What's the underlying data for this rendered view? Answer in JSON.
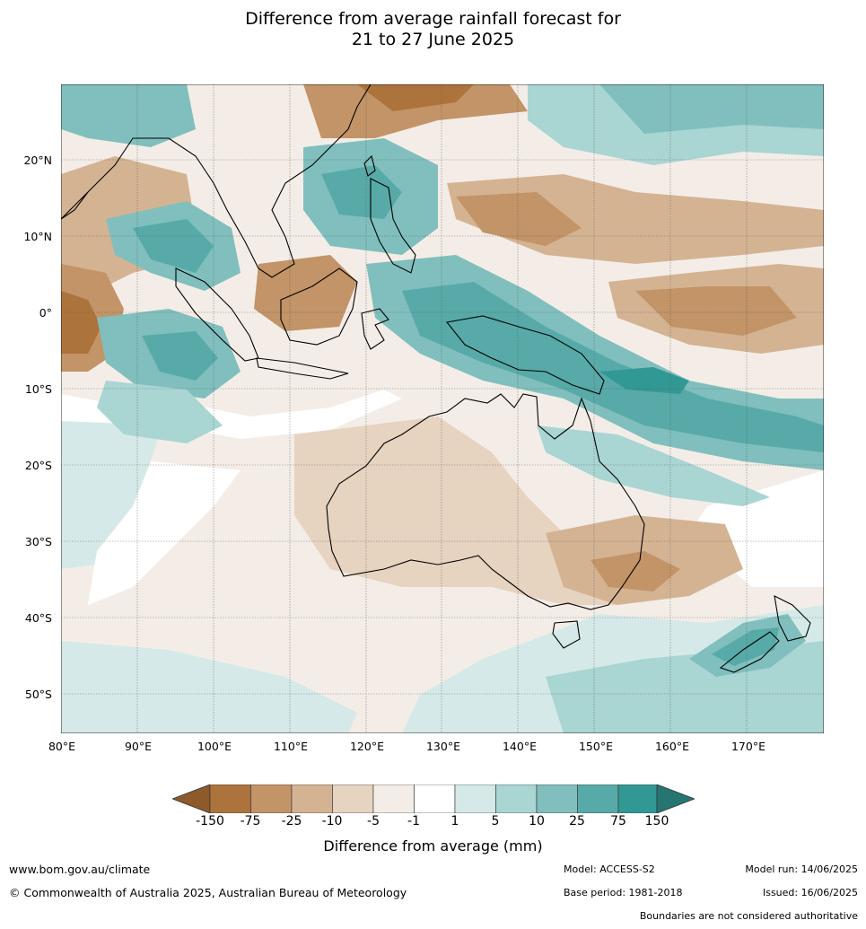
{
  "title_line1": "Difference from average rainfall forecast for",
  "title_line2": "21 to 27 June 2025",
  "lat_labels": [
    "20°N",
    "10°N",
    "0°",
    "10°S",
    "20°S",
    "30°S",
    "40°S",
    "50°S"
  ],
  "lon_labels": [
    "80°E",
    "90°E",
    "100°E",
    "110°E",
    "120°E",
    "130°E",
    "140°E",
    "150°E",
    "160°E",
    "170°E"
  ],
  "colorbar": {
    "ticks": [
      "-150",
      "-75",
      "-25",
      "-10",
      "-5",
      "-1",
      "1",
      "5",
      "10",
      "25",
      "75",
      "150"
    ],
    "colors": [
      "#8c5a2b",
      "#ad733c",
      "#c29467",
      "#d4b393",
      "#e6d3c0",
      "#f4ede7",
      "#ffffff",
      "#d5eae8",
      "#a9d5d3",
      "#80bfbd",
      "#57aaa8",
      "#329894",
      "#257672"
    ],
    "title": "Difference from average (mm)"
  },
  "footer": {
    "website": "www.bom.gov.au/climate",
    "copyright": "© Commonwealth of Australia 2025, Australian Bureau of Meteorology",
    "model": "Model: ACCESS-S2",
    "model_run": "Model run: 14/06/2025",
    "base_period": "Base period: 1981-2018",
    "issued": "Issued: 16/06/2025",
    "disclaimer": "Boundaries are not considered authoritative"
  }
}
